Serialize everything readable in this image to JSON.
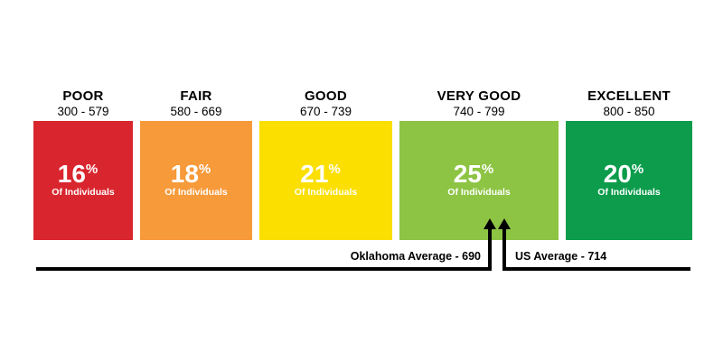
{
  "chart_data": {
    "type": "bar",
    "bands": [
      {
        "name": "POOR",
        "range": "300 - 579",
        "min": 300,
        "max": 579,
        "percent": 16,
        "color": "#d9262e"
      },
      {
        "name": "FAIR",
        "range": "580 - 669",
        "min": 580,
        "max": 669,
        "percent": 18,
        "color": "#f69a3a"
      },
      {
        "name": "GOOD",
        "range": "670 - 739",
        "min": 670,
        "max": 739,
        "percent": 21,
        "color": "#fadf00"
      },
      {
        "name": "VERY GOOD",
        "range": "740 - 799",
        "min": 740,
        "max": 799,
        "percent": 25,
        "color": "#8dc444"
      },
      {
        "name": "EXCELLENT",
        "range": "800 - 850",
        "min": 800,
        "max": 850,
        "percent": 20,
        "color": "#0c9c4c"
      }
    ],
    "percent_sign": "%",
    "sublabel": "Of Individuals",
    "markers": [
      {
        "label": "Oklahoma Average - 690",
        "value": 690
      },
      {
        "label": "US Average - 714",
        "value": 714
      }
    ]
  }
}
